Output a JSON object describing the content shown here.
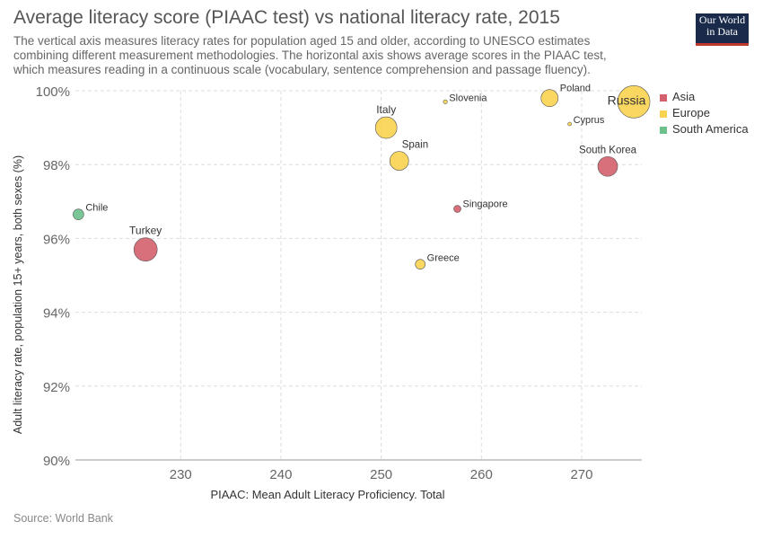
{
  "header": {
    "title": "Average literacy score (PIAAC test) vs national literacy rate, 2015",
    "subtitle_lines": [
      "The vertical axis measures literacy rates for population aged 15 and older, according to UNESCO estimates",
      "combining different measurement methodologies. The horizontal axis shows average scores in the PIAAC test,",
      "which measures reading in a continuous scale (vocabulary, sentence comprehension and passage fluency)."
    ],
    "logo_line1": "Our World",
    "logo_line2": "in Data"
  },
  "footer": {
    "source": "Source: World Bank"
  },
  "colors": {
    "Asia": "#d4606d",
    "Europe": "#f9d34f",
    "South America": "#6cc08b"
  },
  "chart_data": {
    "type": "scatter",
    "title": "Average literacy score (PIAAC test) vs national literacy rate, 2015",
    "xlabel": "PIAAC: Mean Adult Literacy Proficiency. Total",
    "ylabel": "Adult literacy rate, population 15+ years, both sexes (%)",
    "xlim": [
      219.5,
      276
    ],
    "ylim": [
      90,
      100
    ],
    "x_ticks": [
      230,
      240,
      250,
      260,
      270
    ],
    "x_tick_labels": [
      "230",
      "240",
      "250",
      "260",
      "270"
    ],
    "y_ticks": [
      90,
      92,
      94,
      96,
      98,
      100
    ],
    "y_tick_labels": [
      "90%",
      "92%",
      "94%",
      "96%",
      "98%",
      "100%"
    ],
    "grid": true,
    "legend_position": "top-right",
    "legend": [
      "Asia",
      "Europe",
      "South America"
    ],
    "points": [
      {
        "label": "Chile",
        "region": "South America",
        "x": 219.8,
        "y": 96.65,
        "size": 6,
        "label_pos": "right"
      },
      {
        "label": "Turkey",
        "region": "Asia",
        "x": 226.5,
        "y": 95.7,
        "size": 13,
        "label_pos": "above"
      },
      {
        "label": "Italy",
        "region": "Europe",
        "x": 250.5,
        "y": 99.0,
        "size": 12,
        "label_pos": "above"
      },
      {
        "label": "Spain",
        "region": "Europe",
        "x": 251.8,
        "y": 98.1,
        "size": 10.5,
        "label_pos": "above-right"
      },
      {
        "label": "Slovenia",
        "region": "Europe",
        "x": 256.4,
        "y": 99.7,
        "size": 2.2,
        "label_pos": "right"
      },
      {
        "label": "Singapore",
        "region": "Asia",
        "x": 257.6,
        "y": 96.8,
        "size": 4,
        "label_pos": "right"
      },
      {
        "label": "Greece",
        "region": "Europe",
        "x": 253.9,
        "y": 95.3,
        "size": 5.5,
        "label_pos": "right"
      },
      {
        "label": "Poland",
        "region": "Europe",
        "x": 266.8,
        "y": 99.8,
        "size": 9.5,
        "label_pos": "right"
      },
      {
        "label": "Cyprus",
        "region": "Europe",
        "x": 268.8,
        "y": 99.1,
        "size": 2,
        "label_pos": "right"
      },
      {
        "label": "South Korea",
        "region": "Asia",
        "x": 272.6,
        "y": 97.95,
        "size": 11,
        "label_pos": "above-left"
      },
      {
        "label": "Russia",
        "region": "Europe",
        "x": 275.2,
        "y": 99.7,
        "size": 18,
        "label_pos": "over"
      }
    ]
  }
}
